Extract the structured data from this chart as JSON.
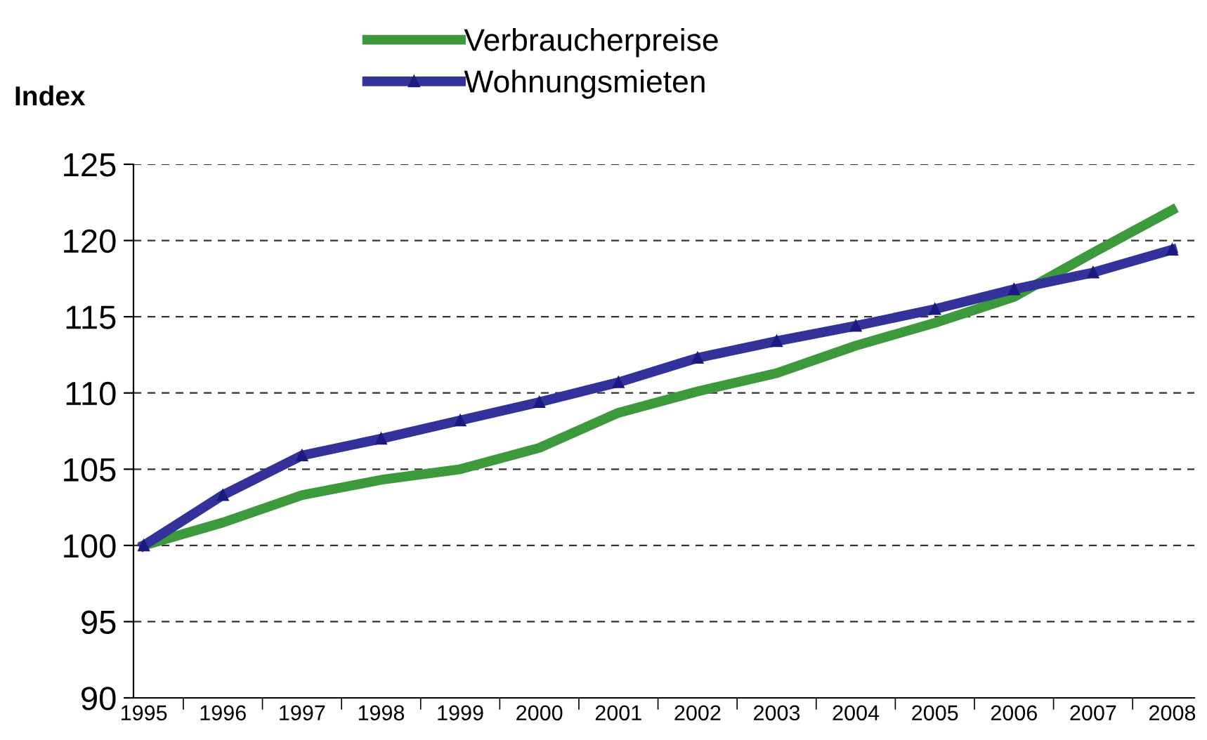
{
  "chart_data": {
    "type": "line",
    "ylabel": "Index",
    "categories": [
      "1995",
      "1996",
      "1997",
      "1998",
      "1999",
      "2000",
      "2001",
      "2002",
      "2003",
      "2004",
      "2005",
      "2006",
      "2007",
      "2008"
    ],
    "series": [
      {
        "name": "Verbraucherpreise",
        "color": "#3c9a3c",
        "marker": "none",
        "values": [
          100,
          101.5,
          103.3,
          104.3,
          105.0,
          106.4,
          108.7,
          110.1,
          111.3,
          113.1,
          114.6,
          116.3,
          119.2,
          122.0
        ]
      },
      {
        "name": "Wohnungsmieten",
        "color": "#33329a",
        "marker": "triangle",
        "values": [
          100,
          103.3,
          105.9,
          107.0,
          108.2,
          109.4,
          110.7,
          112.3,
          113.4,
          114.4,
          115.5,
          116.8,
          117.9,
          119.4
        ]
      }
    ],
    "ylim": [
      90,
      125
    ],
    "yticks": [
      90,
      95,
      100,
      105,
      110,
      115,
      120,
      125
    ],
    "grid": "y",
    "legend": "top",
    "line_style": "solid"
  }
}
